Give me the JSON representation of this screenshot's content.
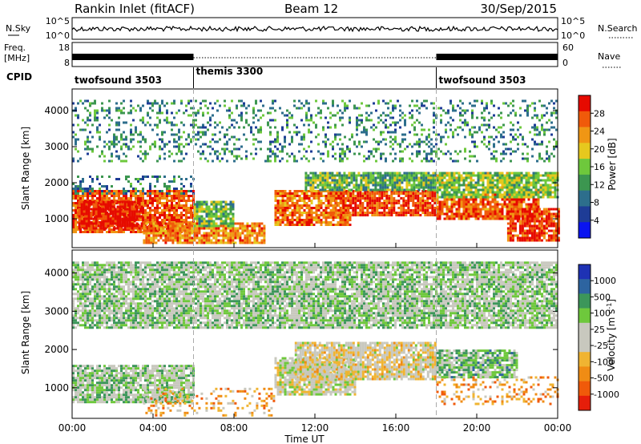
{
  "header": {
    "title": "Rankin Inlet (fitACF)",
    "beam": "Beam 12",
    "date": "30/Sep/2015"
  },
  "noise_panel": {
    "left_label": "N.Sky",
    "right_label": "N.Search",
    "left_ticks": [
      "10^5",
      "10^0"
    ],
    "right_ticks": [
      "10^5",
      "10^0"
    ]
  },
  "freq_panel": {
    "left_label": "Freq.",
    "left_unit": "[MHz]",
    "right_label": "Nave",
    "left_ticks": [
      "18",
      "8"
    ],
    "right_ticks": [
      "60",
      "0"
    ]
  },
  "cpid": {
    "label": "CPID",
    "segments": [
      {
        "name": "twofsound 3503",
        "start_hour": 0,
        "end_hour": 6
      },
      {
        "name": "themis 3300",
        "start_hour": 6,
        "end_hour": 18
      },
      {
        "name": "twofsound 3503",
        "start_hour": 18,
        "end_hour": 24
      }
    ]
  },
  "colors": {
    "power_scale": [
      "#0a14f0",
      "#1e3c96",
      "#2d6e8c",
      "#3c9650",
      "#6ec83c",
      "#e6c81e",
      "#f09614",
      "#f05a0a",
      "#e60a00"
    ],
    "velocity_scale": [
      "#1e32b4",
      "#2d64a0",
      "#3c965a",
      "#6ec83c",
      "#c8c8be",
      "#c8c8be",
      "#f0b432",
      "#f08c14",
      "#f05a0a",
      "#e61e0a"
    ]
  },
  "chart_data": [
    {
      "type": "heatmap",
      "name": "power",
      "ylabel": "Slant Range [km]",
      "y_ticks": [
        1000,
        2000,
        3000,
        4000
      ],
      "ylim": [
        200,
        4600
      ],
      "colorbar": {
        "label": "Power [dB]",
        "ticks": [
          "4",
          "8",
          "12",
          "16",
          "20",
          "24",
          "28"
        ],
        "range": [
          0,
          32
        ]
      },
      "regions": [
        {
          "t0": 0.0,
          "t1": 6.0,
          "r0": 600,
          "r1": 1800,
          "level": 0.85
        },
        {
          "t0": 0.3,
          "t1": 3.5,
          "r0": 700,
          "r1": 1500,
          "level": 0.95
        },
        {
          "t0": 3.5,
          "t1": 9.5,
          "r0": 300,
          "r1": 900,
          "level": 0.75
        },
        {
          "t0": 6.0,
          "t1": 8.0,
          "r0": 800,
          "r1": 1500,
          "level": 0.45
        },
        {
          "t0": 0.0,
          "t1": 6.0,
          "r0": 1700,
          "r1": 2200,
          "level": 0.3
        },
        {
          "t0": 10.0,
          "t1": 13.8,
          "r0": 800,
          "r1": 1800,
          "level": 0.8
        },
        {
          "t0": 13.0,
          "t1": 18.0,
          "r0": 1100,
          "r1": 1800,
          "level": 0.88
        },
        {
          "t0": 11.5,
          "t1": 18.0,
          "r0": 1800,
          "r1": 2300,
          "level": 0.45
        },
        {
          "t0": 18.0,
          "t1": 23.0,
          "r0": 1000,
          "r1": 1700,
          "level": 0.82
        },
        {
          "t0": 21.5,
          "t1": 24.0,
          "r0": 400,
          "r1": 1300,
          "level": 0.9
        },
        {
          "t0": 18.0,
          "t1": 24.0,
          "r0": 1600,
          "r1": 2300,
          "level": 0.5
        },
        {
          "t0": 0.0,
          "t1": 24.0,
          "r0": 2600,
          "r1": 4300,
          "level": 0.35
        }
      ]
    },
    {
      "type": "heatmap",
      "name": "velocity",
      "xlabel": "Time UT",
      "ylabel": "Slant Range [km]",
      "x_ticks": [
        "00:00",
        "04:00",
        "08:00",
        "12:00",
        "16:00",
        "20:00",
        "00:00"
      ],
      "xlim": [
        0,
        24
      ],
      "y_ticks": [
        1000,
        2000,
        3000,
        4000
      ],
      "ylim": [
        200,
        4600
      ],
      "colorbar": {
        "label": "Velocity [m s",
        "label_superscript": "-1",
        "label_close": "]",
        "ticks": [
          "1000",
          "500",
          "100",
          "25",
          "-25",
          "-100",
          "-500",
          "-1000"
        ]
      },
      "regions": [
        {
          "t0": 0.0,
          "t1": 6.0,
          "r0": 600,
          "r1": 1600,
          "level": 0.6
        },
        {
          "t0": 3.5,
          "t1": 10.0,
          "r0": 300,
          "r1": 1000,
          "level": 0.3
        },
        {
          "t0": 10.0,
          "t1": 14.0,
          "r0": 800,
          "r1": 1800,
          "level": 0.5
        },
        {
          "t0": 11.0,
          "t1": 18.0,
          "r0": 1200,
          "r1": 2200,
          "level": 0.45
        },
        {
          "t0": 18.0,
          "t1": 24.0,
          "r0": 600,
          "r1": 1300,
          "level": 0.3
        },
        {
          "t0": 18.0,
          "t1": 22.0,
          "r0": 1300,
          "r1": 2000,
          "level": 0.65
        },
        {
          "t0": 0.0,
          "t1": 24.0,
          "r0": 2600,
          "r1": 4300,
          "level": 0.6
        }
      ]
    }
  ]
}
